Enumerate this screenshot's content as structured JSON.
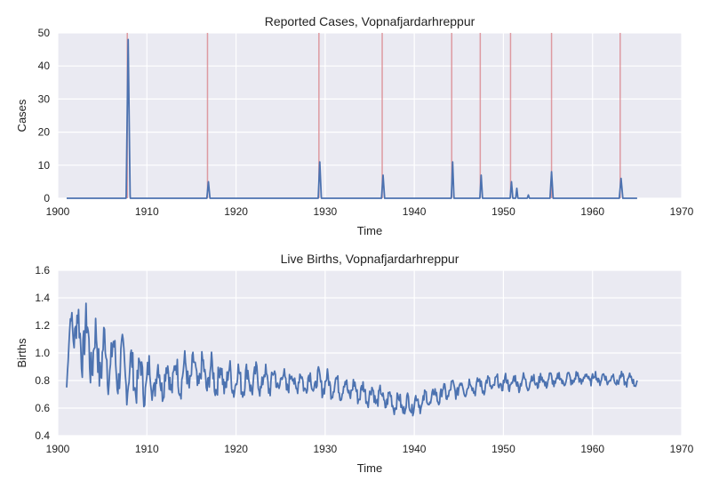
{
  "chart_data": [
    {
      "type": "line",
      "title": "Reported Cases, Vopnafjardarhreppur",
      "xlabel": "Time",
      "ylabel": "Cases",
      "xlim": [
        1900,
        1970
      ],
      "ylim": [
        0,
        50
      ],
      "xticks": [
        1900,
        1910,
        1920,
        1930,
        1940,
        1950,
        1960,
        1970
      ],
      "yticks": [
        0,
        10,
        20,
        30,
        40,
        50
      ],
      "grid": true,
      "colors": {
        "background": "#eaeaf2",
        "grid": "#ffffff",
        "line": "#4c72b0",
        "marker": "#d9868c"
      },
      "marker_lines": [
        1907.8,
        1916.8,
        1929.3,
        1936.4,
        1944.2,
        1947.4,
        1950.8,
        1955.4,
        1963.1
      ],
      "series": [
        {
          "x_range": [
            1901,
            1965
          ],
          "baseline": 0,
          "peaks": [
            {
              "x": 1907.9,
              "y": 48,
              "width": 0.45
            },
            {
              "x": 1916.9,
              "y": 5,
              "width": 0.35
            },
            {
              "x": 1929.4,
              "y": 11,
              "width": 0.35
            },
            {
              "x": 1936.5,
              "y": 7,
              "width": 0.35
            },
            {
              "x": 1944.3,
              "y": 11,
              "width": 0.3
            },
            {
              "x": 1947.5,
              "y": 7,
              "width": 0.3
            },
            {
              "x": 1950.9,
              "y": 5,
              "width": 0.3
            },
            {
              "x": 1951.5,
              "y": 3,
              "width": 0.25
            },
            {
              "x": 1952.8,
              "y": 1,
              "width": 0.25
            },
            {
              "x": 1955.4,
              "y": 8,
              "width": 0.35
            },
            {
              "x": 1963.2,
              "y": 6,
              "width": 0.4
            }
          ]
        }
      ]
    },
    {
      "type": "line",
      "title": "Live Births, Vopnafjardarhreppur",
      "xlabel": "Time",
      "ylabel": "Births",
      "xlim": [
        1900,
        1970
      ],
      "ylim": [
        0.4,
        1.6
      ],
      "xticks": [
        1900,
        1910,
        1920,
        1930,
        1940,
        1950,
        1960,
        1970
      ],
      "yticks": [
        0.4,
        0.6,
        0.8,
        1.0,
        1.2,
        1.4,
        1.6
      ],
      "grid": true,
      "colors": {
        "background": "#eaeaf2",
        "grid": "#ffffff",
        "line": "#4c72b0"
      },
      "series": [
        {
          "x_range": [
            1901,
            1965
          ],
          "trend": [
            [
              1901,
              0.75
            ],
            [
              1901.5,
              1.3
            ],
            [
              1902,
              1.15
            ],
            [
              1903,
              1.1
            ],
            [
              1904,
              1.0
            ],
            [
              1906,
              0.95
            ],
            [
              1908,
              0.85
            ],
            [
              1910,
              0.8
            ],
            [
              1915,
              0.85
            ],
            [
              1920,
              0.8
            ],
            [
              1925,
              0.8
            ],
            [
              1930,
              0.78
            ],
            [
              1935,
              0.7
            ],
            [
              1939,
              0.62
            ],
            [
              1941,
              0.65
            ],
            [
              1945,
              0.75
            ],
            [
              1950,
              0.78
            ],
            [
              1955,
              0.8
            ],
            [
              1960,
              0.82
            ],
            [
              1965,
              0.8
            ]
          ],
          "amplitude": [
            [
              1901,
              0.05
            ],
            [
              1902,
              0.3
            ],
            [
              1904,
              0.35
            ],
            [
              1906,
              0.3
            ],
            [
              1908,
              0.25
            ],
            [
              1912,
              0.2
            ],
            [
              1916,
              0.2
            ],
            [
              1922,
              0.15
            ],
            [
              1930,
              0.12
            ],
            [
              1940,
              0.1
            ],
            [
              1950,
              0.08
            ],
            [
              1965,
              0.06
            ]
          ]
        }
      ]
    }
  ]
}
